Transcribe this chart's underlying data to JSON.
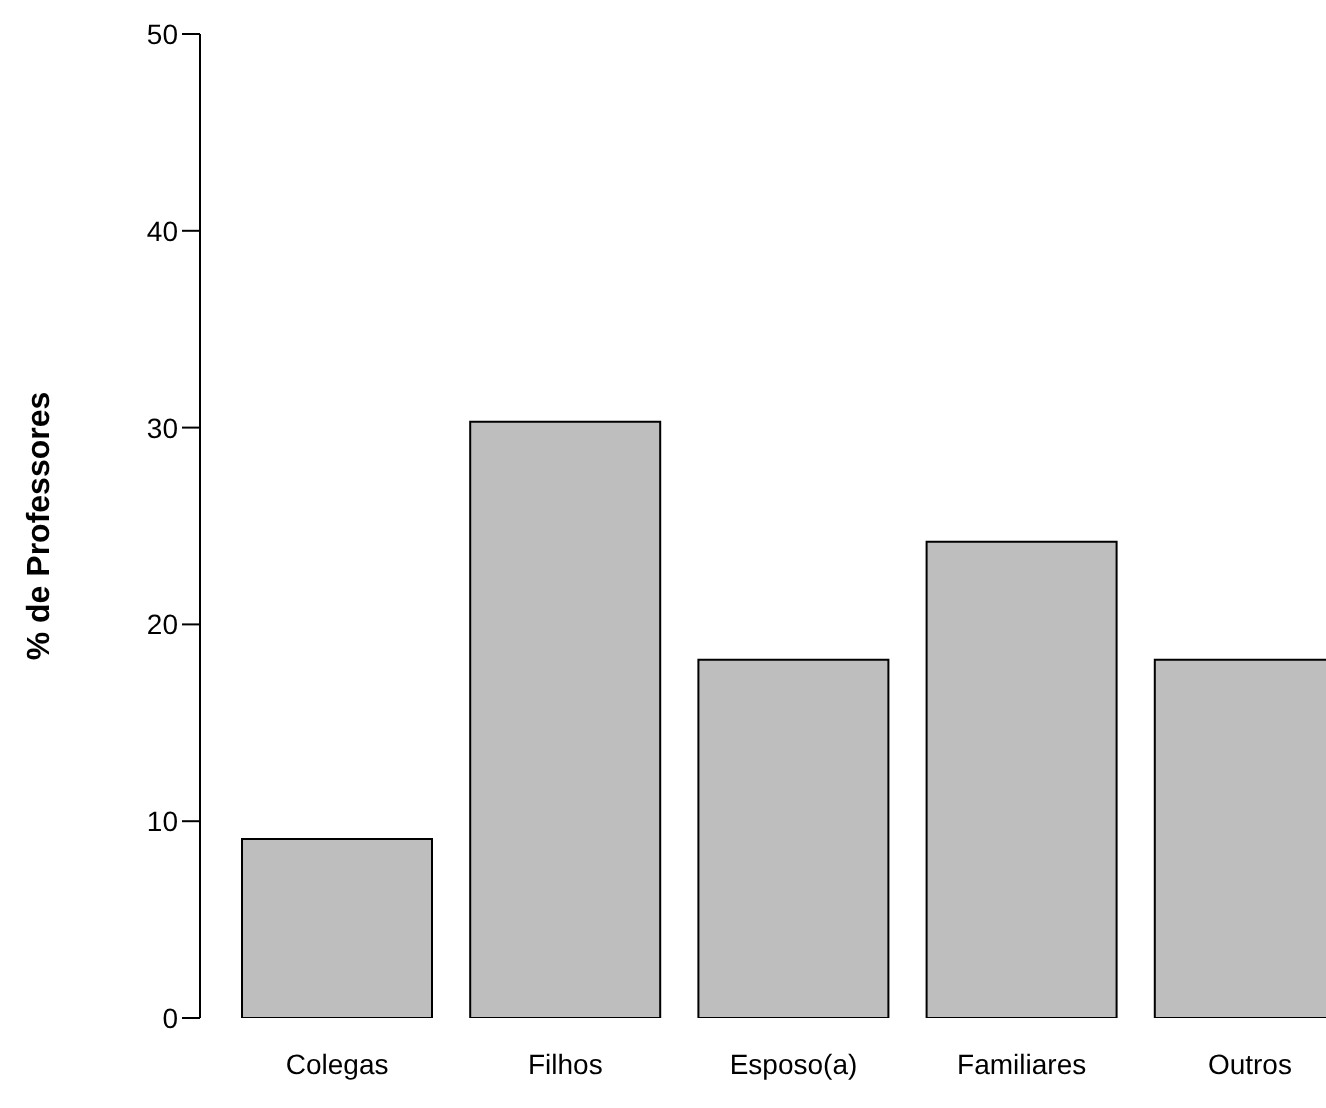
{
  "chart_data": {
    "type": "bar",
    "ylabel": "% de Professores",
    "categories": [
      "Colegas",
      "Filhos",
      "Esposo(a)",
      "Familiares",
      "Outros"
    ],
    "values": [
      9.1,
      30.3,
      18.2,
      24.2,
      18.2
    ],
    "color": "#bebebe",
    "ylim": [
      0,
      50
    ],
    "yticks": [
      0,
      10,
      20,
      30,
      40,
      50
    ]
  }
}
